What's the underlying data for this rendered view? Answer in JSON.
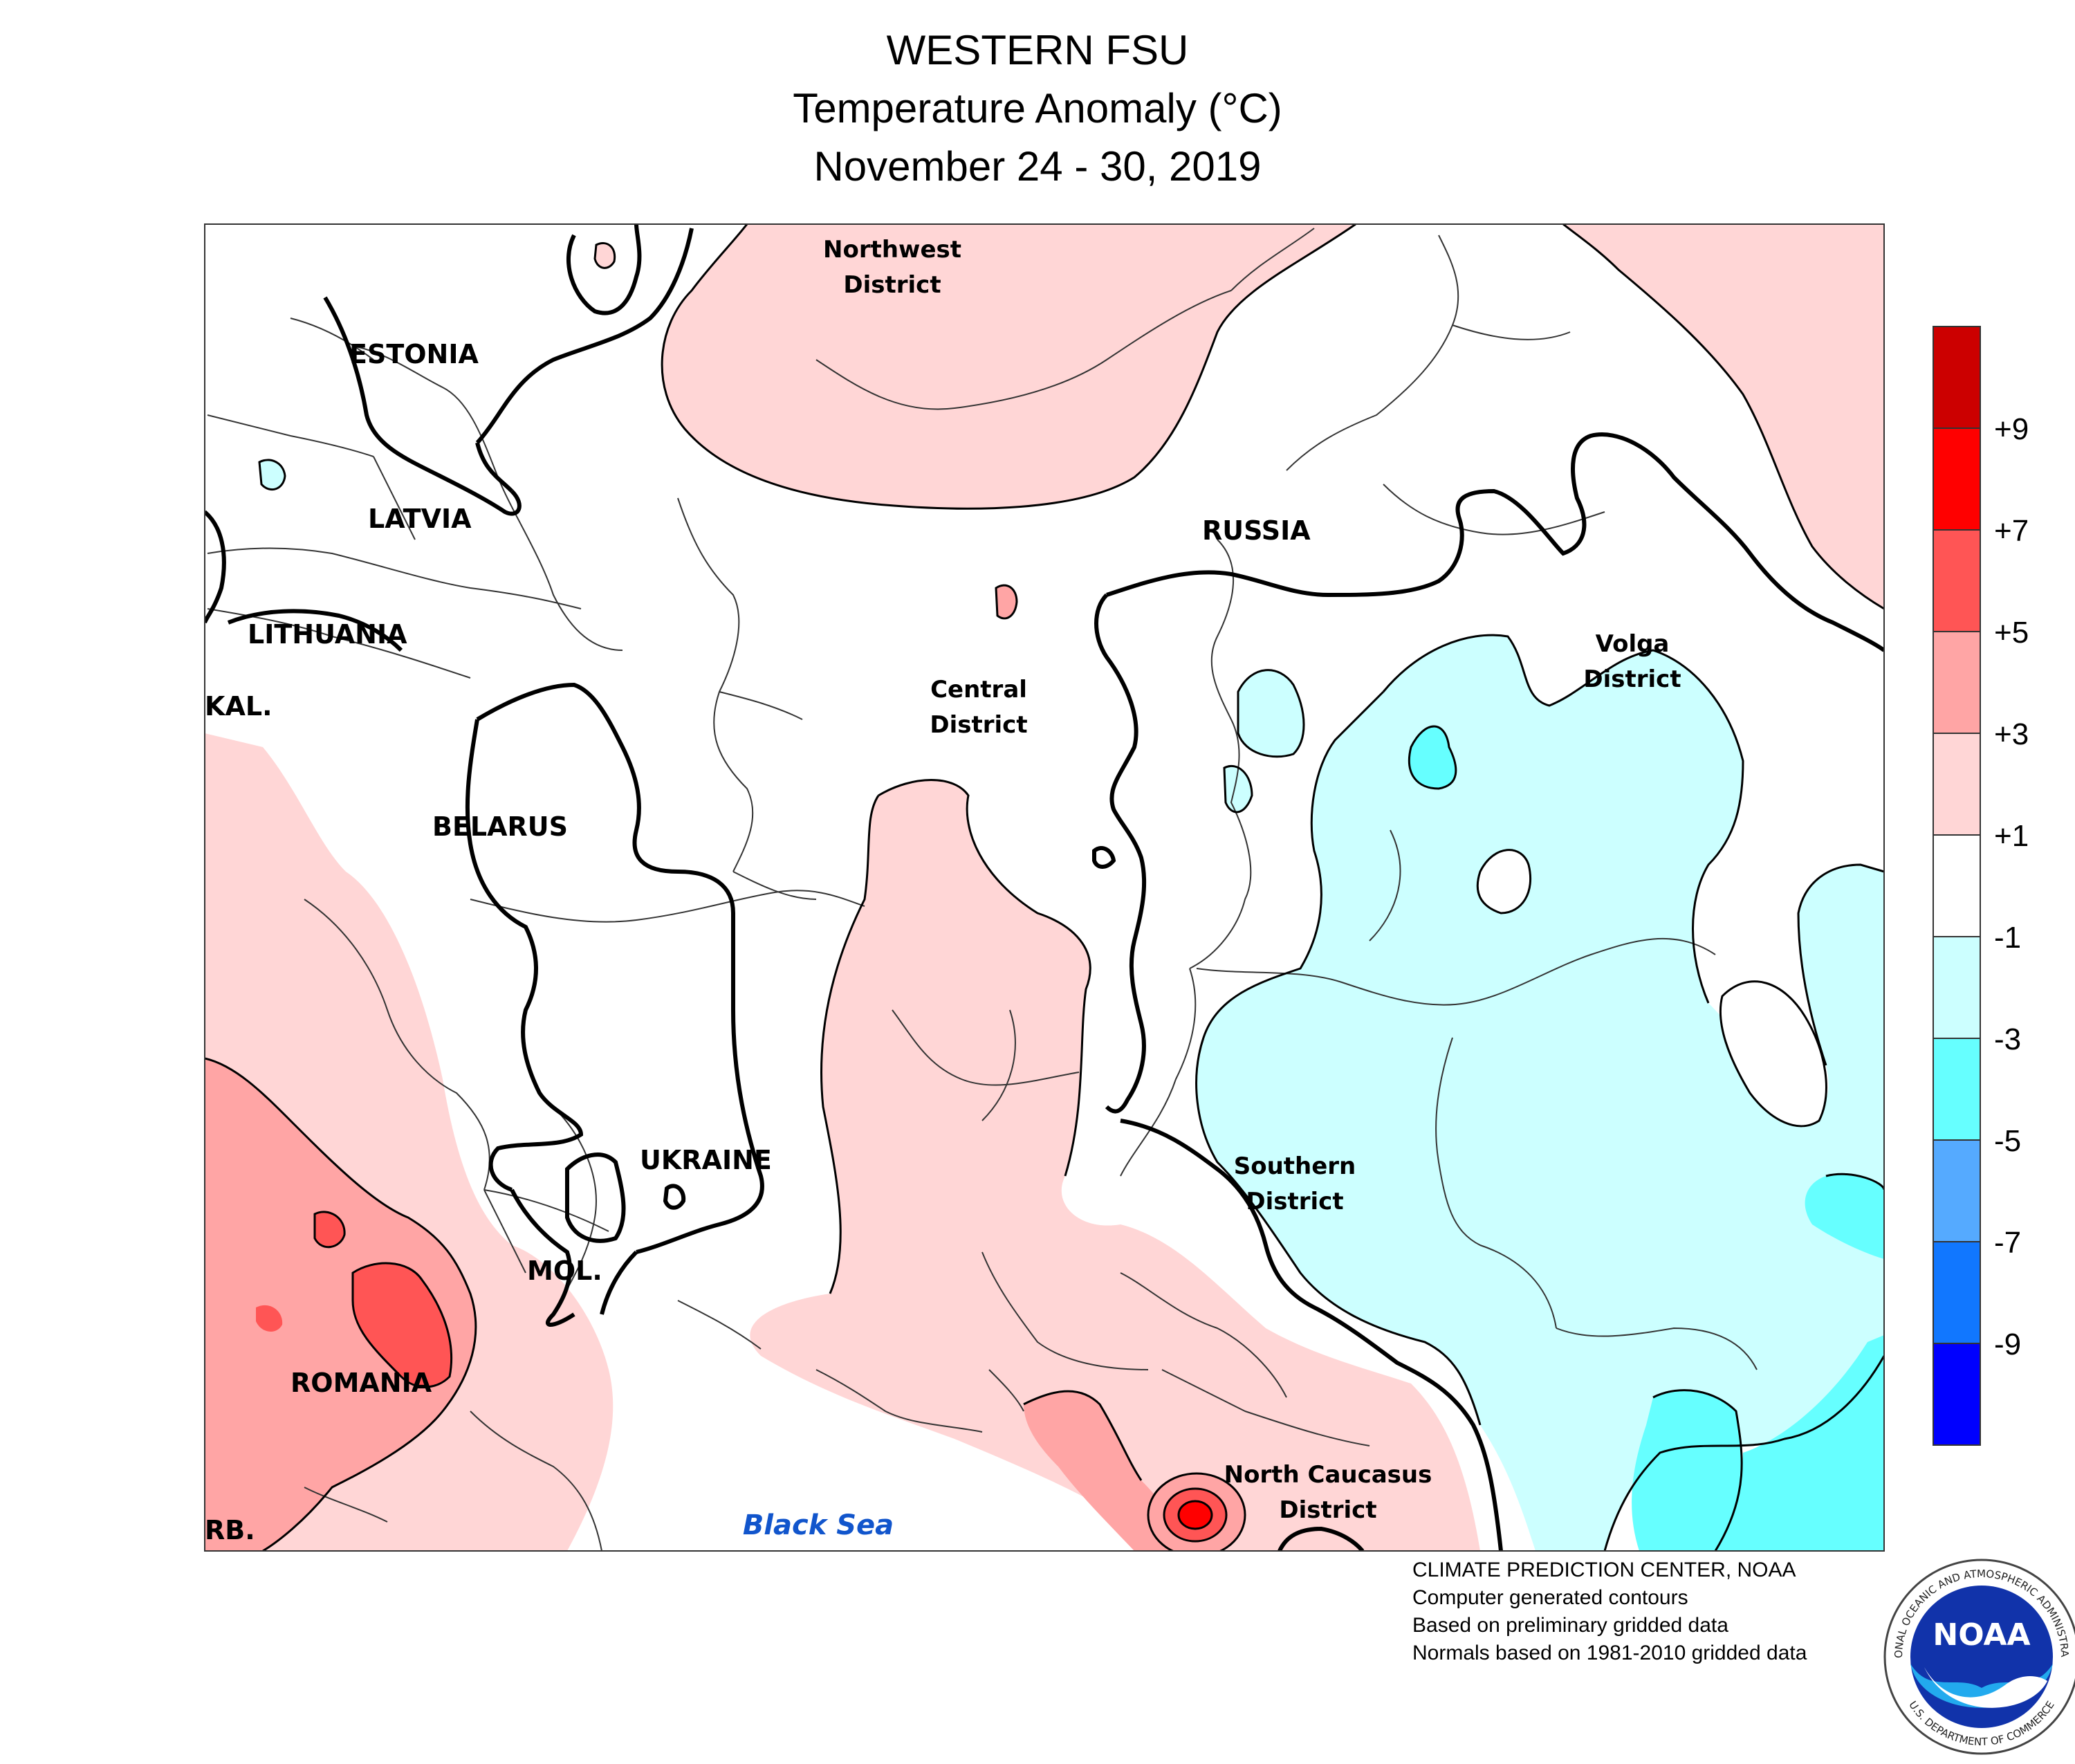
{
  "header": {
    "title": "WESTERN FSU",
    "subtitle": "Temperature Anomaly (°C)",
    "period": "November 24 - 30, 2019"
  },
  "map": {
    "labels": {
      "estonia": "ESTONIA",
      "latvia": "LATVIA",
      "lithuania": "LITHUANIA",
      "kaliningrad": "KAL.",
      "belarus": "BELARUS",
      "ukraine": "UKRAINE",
      "moldova": "MOL.",
      "romania": "ROMANIA",
      "serbia": "RB.",
      "russia": "RUSSIA",
      "northwest_1": "Northwest",
      "northwest_2": "District",
      "central_1": "Central",
      "central_2": "District",
      "volga_1": "Volga",
      "volga_2": "District",
      "southern_1": "Southern",
      "southern_2": "District",
      "caucasus_1": "North Caucasus",
      "caucasus_2": "District",
      "black_sea": "Black Sea"
    }
  },
  "legend": {
    "tick_labels": [
      "+9",
      "+7",
      "+5",
      "+3",
      "+1",
      "-1",
      "-3",
      "-5",
      "-7",
      "-9"
    ],
    "colors": [
      "#cc0000",
      "#ff0000",
      "#ff5555",
      "#ffa5a5",
      "#ffd6d6",
      "#ffffff",
      "#ccffff",
      "#66ffff",
      "#55aaff",
      "#1177ff",
      "#0000ff"
    ]
  },
  "colors": {
    "light_red": "#ffd6d6",
    "medium_red": "#ffa5a5",
    "red": "#ff5555",
    "bright_red": "#ff0000",
    "light_blue": "#ccffff",
    "cyan": "#66ffff",
    "sea_label": "#1155cc",
    "noaa_blue": "#1133aa"
  },
  "credits": {
    "line1": "CLIMATE PREDICTION CENTER, NOAA",
    "line2": "Computer generated contours",
    "line3": "Based on preliminary gridded data",
    "line4": "Normals based on 1981-2010 gridded data"
  },
  "logo": {
    "text": "NOAA",
    "ring_top": "NATIONAL OCEANIC AND ATMOSPHERIC ADMINISTRATION",
    "ring_bottom": "U.S. DEPARTMENT OF COMMERCE"
  }
}
